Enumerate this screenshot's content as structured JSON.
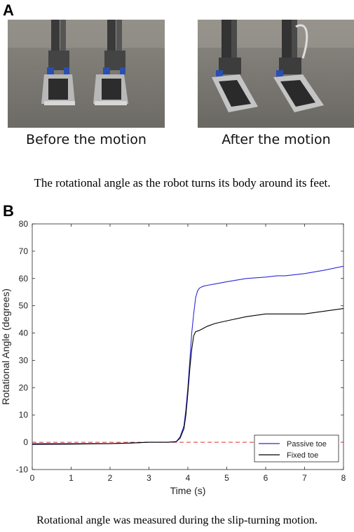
{
  "panel_a": {
    "label": "A",
    "before_caption": "Before the motion",
    "after_caption": "After the motion",
    "figure_caption": "The rotational angle as the robot turns its body around its feet."
  },
  "panel_b": {
    "label": "B",
    "figure_caption": "Rotational angle was measured during the slip-turning motion."
  },
  "chart_data": {
    "type": "line",
    "title": "",
    "xlabel": "Time (s)",
    "ylabel": "Rotational Angle (degrees)",
    "xlim": [
      0,
      8
    ],
    "ylim": [
      -10,
      80
    ],
    "xticks": [
      0,
      1,
      2,
      3,
      4,
      5,
      6,
      7,
      8
    ],
    "yticks": [
      -10,
      0,
      10,
      20,
      30,
      40,
      50,
      60,
      70,
      80
    ],
    "grid": false,
    "legend_position": "bottom-right",
    "series": [
      {
        "name": "Passive toe",
        "color": "#2b2bd6",
        "x": [
          0,
          1,
          2,
          2.5,
          3,
          3.5,
          3.7,
          3.8,
          3.9,
          3.95,
          4.0,
          4.05,
          4.1,
          4.15,
          4.2,
          4.25,
          4.3,
          4.4,
          4.5,
          4.7,
          5.0,
          5.5,
          6.0,
          6.3,
          6.5,
          7.0,
          7.5,
          8.0
        ],
        "y": [
          -0.5,
          -0.5,
          -0.5,
          -0.3,
          0,
          0,
          0.2,
          2,
          6,
          12,
          20,
          30,
          40,
          47,
          53,
          55.5,
          56.5,
          57.2,
          57.5,
          58,
          58.8,
          60,
          60.5,
          61,
          61,
          61.8,
          63,
          64.5
        ]
      },
      {
        "name": "Fixed toe",
        "color": "#000000",
        "x": [
          0,
          1,
          2,
          2.5,
          3,
          3.5,
          3.7,
          3.8,
          3.9,
          3.95,
          4.0,
          4.05,
          4.1,
          4.15,
          4.2,
          4.3,
          4.5,
          4.7,
          5.0,
          5.5,
          6.0,
          6.5,
          7.0,
          7.5,
          8.0
        ],
        "y": [
          -0.8,
          -0.7,
          -0.5,
          -0.3,
          0,
          0,
          0.2,
          1.5,
          5,
          10,
          18,
          27,
          34,
          39,
          40.5,
          41,
          42.5,
          43.5,
          44.5,
          46,
          47,
          47,
          47,
          48,
          49
        ]
      }
    ],
    "reference_line": {
      "y": 0,
      "color": "#e03030",
      "style": "dashed"
    }
  }
}
